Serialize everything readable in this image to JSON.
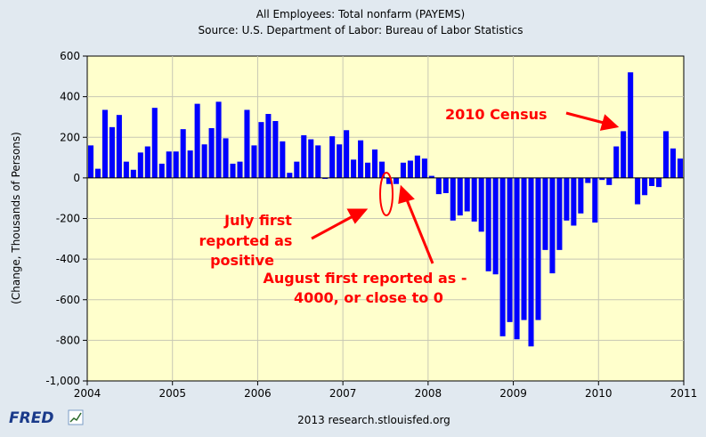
{
  "chart_data": {
    "type": "bar",
    "title": "All Employees: Total nonfarm (PAYEMS)",
    "subtitle": "Source: U.S. Department of Labor: Bureau of Labor Statistics",
    "ylabel": "(Change, Thousands of Persons)",
    "xlabel": "",
    "ylim": [
      -1000,
      600
    ],
    "yticks": [
      600,
      400,
      200,
      0,
      -200,
      -400,
      -600,
      -800,
      -1000
    ],
    "ytick_labels": [
      "600",
      "400",
      "200",
      "0",
      "-200",
      "-400",
      "-600",
      "-800",
      "-1,000"
    ],
    "xlim": [
      "2004-01",
      "2011-01"
    ],
    "xtick_labels": [
      "2004",
      "2005",
      "2006",
      "2007",
      "2008",
      "2009",
      "2010",
      "2011"
    ],
    "grid": true,
    "bar_color": "#0000ff",
    "plot_background": "#ffffcc",
    "start": "2004-01",
    "values": [
      160,
      45,
      335,
      250,
      310,
      80,
      40,
      125,
      155,
      345,
      70,
      130,
      130,
      240,
      135,
      365,
      165,
      245,
      375,
      195,
      70,
      80,
      335,
      160,
      275,
      315,
      280,
      180,
      25,
      80,
      210,
      190,
      160,
      -5,
      205,
      165,
      235,
      90,
      185,
      75,
      140,
      80,
      -30,
      -30,
      75,
      85,
      110,
      95,
      10,
      -80,
      -75,
      -210,
      -185,
      -165,
      -215,
      -265,
      -460,
      -475,
      -780,
      -710,
      -795,
      -700,
      -830,
      -700,
      -355,
      -470,
      -355,
      -210,
      -235,
      -175,
      -25,
      -220,
      -10,
      -35,
      155,
      230,
      520,
      -130,
      -85,
      -40,
      -45,
      230,
      145,
      95
    ],
    "annotations": [
      {
        "text": "2010 Census",
        "color": "#ff0000"
      },
      {
        "text": "July first",
        "color": "#ff0000"
      },
      {
        "text": "reported as",
        "color": "#ff0000"
      },
      {
        "text": "positive",
        "color": "#ff0000"
      },
      {
        "text": "August first reported as -",
        "color": "#ff0000"
      },
      {
        "text": "4000, or close to 0",
        "color": "#ff0000"
      }
    ]
  },
  "footer": {
    "logo": "FRED",
    "source": "2013 research.stlouisfed.org"
  }
}
